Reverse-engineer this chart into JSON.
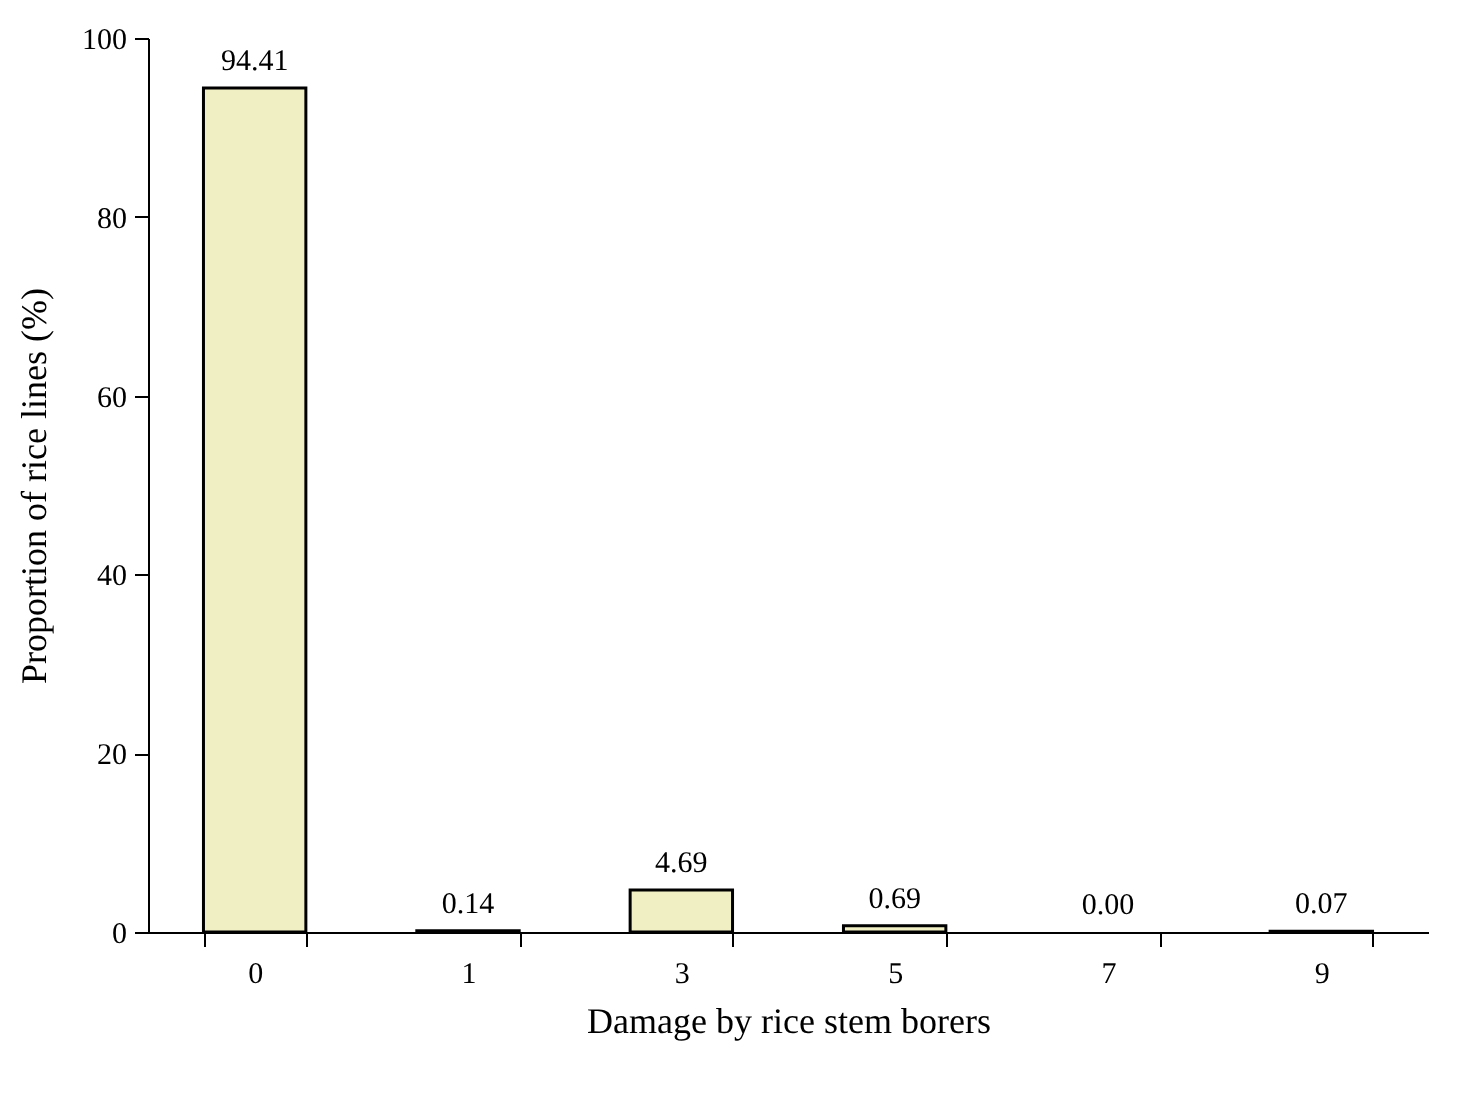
{
  "chart_data": {
    "type": "bar",
    "xlabel": "Damage by rice stem borers",
    "ylabel": "Proportion of rice lines  (%)",
    "categories": [
      "0",
      "1",
      "3",
      "5",
      "7",
      "9"
    ],
    "values": [
      94.41,
      0.14,
      4.69,
      0.69,
      0.0,
      0.07
    ],
    "value_labels": [
      "94.41",
      "0.14",
      "4.69",
      "0.69",
      "0.00",
      "0.07"
    ],
    "color": "#f0efc4",
    "ylim": [
      0,
      100
    ],
    "yticks": [
      0,
      20,
      40,
      60,
      80,
      100
    ],
    "grid": false
  }
}
